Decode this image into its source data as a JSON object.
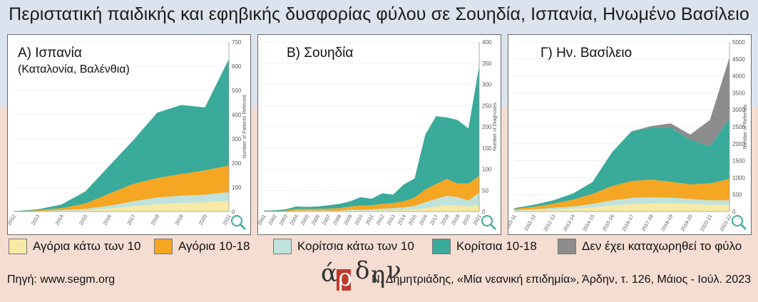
{
  "title": "Περιστατική παιδικής και εφηβικής δυσφορίας φύλου σε Σουηδία, Ισπανία, Ηνωμένο Βασίλειο",
  "colors": {
    "boys_under10": "#f7eaa6",
    "boys_10_18": "#f5a623",
    "girls_under10": "#bfe3dc",
    "girls_10_18": "#3aaa9a",
    "unrecorded": "#8c8c8c"
  },
  "legend": [
    {
      "label": "Αγόρια κάτω των 10",
      "color": "#f7eaa6"
    },
    {
      "label": "Αγόρια 10-18",
      "color": "#f5a623"
    },
    {
      "label": "Κορίτσια κάτω των 10",
      "color": "#bfe3dc"
    },
    {
      "label": "Κορίτσια 10-18",
      "color": "#3aaa9a"
    },
    {
      "label": "Δεν έχει καταχωρηθεί το φύλο",
      "color": "#8c8c8c"
    }
  ],
  "source": "Πηγή: www.segm.org",
  "citation": "Ν. Δημητριάδης, «Μία νεανική επιδημία», Άρδην, τ. 126, Μάιος - Ιούλ. 2023",
  "logo_text": {
    "a": "ά",
    "r": "ρ",
    "d": "δ",
    "h": "η",
    "n": "ν"
  },
  "chart_data": [
    {
      "type": "area",
      "title": "Α) Ισπανία",
      "subtitle": "(Καταλονία, Βαλένθια)",
      "ylabel": "Number of Patients Referred",
      "ylim": [
        0,
        700
      ],
      "yticks": [
        0,
        100,
        200,
        300,
        400,
        500,
        600,
        700
      ],
      "x": [
        "2012",
        "2013",
        "2014",
        "2015",
        "2016",
        "2017",
        "2018",
        "2019",
        "2020",
        "2021"
      ],
      "series": [
        {
          "key": "boys_under10",
          "values": [
            0,
            1,
            3,
            5,
            12,
            22,
            30,
            35,
            38,
            45
          ]
        },
        {
          "key": "girls_under10",
          "values": [
            0,
            1,
            3,
            6,
            12,
            20,
            28,
            30,
            32,
            35
          ]
        },
        {
          "key": "boys_10_18",
          "values": [
            1,
            3,
            8,
            22,
            50,
            72,
            80,
            90,
            100,
            110
          ]
        },
        {
          "key": "girls_10_18",
          "values": [
            1,
            4,
            15,
            50,
            115,
            180,
            270,
            285,
            260,
            440
          ]
        }
      ]
    },
    {
      "type": "area",
      "title": "Β) Σουηδία",
      "subtitle": "",
      "ylabel": "Number of Diagnoses",
      "ylim": [
        0,
        400
      ],
      "yticks": [
        0,
        50,
        100,
        150,
        200,
        250,
        300,
        350,
        400
      ],
      "x": [
        "2001",
        "2002",
        "2003",
        "2004",
        "2005",
        "2006",
        "2007",
        "2008",
        "2009",
        "2010",
        "2011",
        "2012",
        "2013",
        "2014",
        "2015",
        "2016",
        "2017",
        "2018",
        "2019",
        "2020",
        "2021"
      ],
      "series": [
        {
          "key": "boys_under10",
          "values": [
            0,
            0,
            0,
            1,
            1,
            1,
            1,
            1,
            2,
            2,
            2,
            3,
            3,
            4,
            5,
            8,
            12,
            15,
            14,
            12,
            14
          ]
        },
        {
          "key": "girls_under10",
          "values": [
            0,
            0,
            0,
            1,
            1,
            1,
            1,
            1,
            2,
            2,
            3,
            4,
            5,
            6,
            8,
            14,
            18,
            22,
            20,
            14,
            30
          ]
        },
        {
          "key": "boys_10_18",
          "values": [
            1,
            1,
            2,
            4,
            4,
            4,
            5,
            6,
            8,
            10,
            10,
            11,
            12,
            14,
            20,
            30,
            35,
            40,
            32,
            40,
            40
          ]
        },
        {
          "key": "girls_10_18",
          "values": [
            1,
            2,
            3,
            6,
            5,
            6,
            8,
            10,
            12,
            20,
            15,
            25,
            20,
            40,
            45,
            130,
            160,
            145,
            150,
            130,
            260
          ]
        }
      ]
    },
    {
      "type": "area",
      "title": "Γ) Ην. Βασίλειο",
      "subtitle": "",
      "ylabel": "Number of Referrals",
      "ylim": [
        0,
        5000
      ],
      "yticks": [
        0,
        500,
        1000,
        1500,
        2000,
        2500,
        3000,
        3500,
        4000,
        4500,
        5000
      ],
      "x": [
        "2010-11",
        "2011-12",
        "2012-13",
        "2013-14",
        "2014-15",
        "2015-16",
        "2016-17",
        "2017-18",
        "2018-19",
        "2019-20",
        "2020-21",
        "2021-22"
      ],
      "series": [
        {
          "key": "boys_under10",
          "values": [
            20,
            40,
            60,
            80,
            120,
            180,
            220,
            240,
            240,
            220,
            200,
            200
          ]
        },
        {
          "key": "girls_under10",
          "values": [
            20,
            30,
            50,
            70,
            100,
            150,
            180,
            180,
            170,
            150,
            130,
            130
          ]
        },
        {
          "key": "boys_10_18",
          "values": [
            40,
            70,
            120,
            200,
            300,
            420,
            500,
            520,
            470,
            430,
            500,
            630
          ]
        },
        {
          "key": "girls_10_18",
          "values": [
            20,
            60,
            100,
            180,
            350,
            1000,
            1470,
            1530,
            1600,
            1320,
            1100,
            1800
          ]
        },
        {
          "key": "unrecorded",
          "values": [
            0,
            0,
            0,
            0,
            0,
            0,
            0,
            50,
            120,
            150,
            770,
            1790
          ]
        }
      ]
    }
  ]
}
